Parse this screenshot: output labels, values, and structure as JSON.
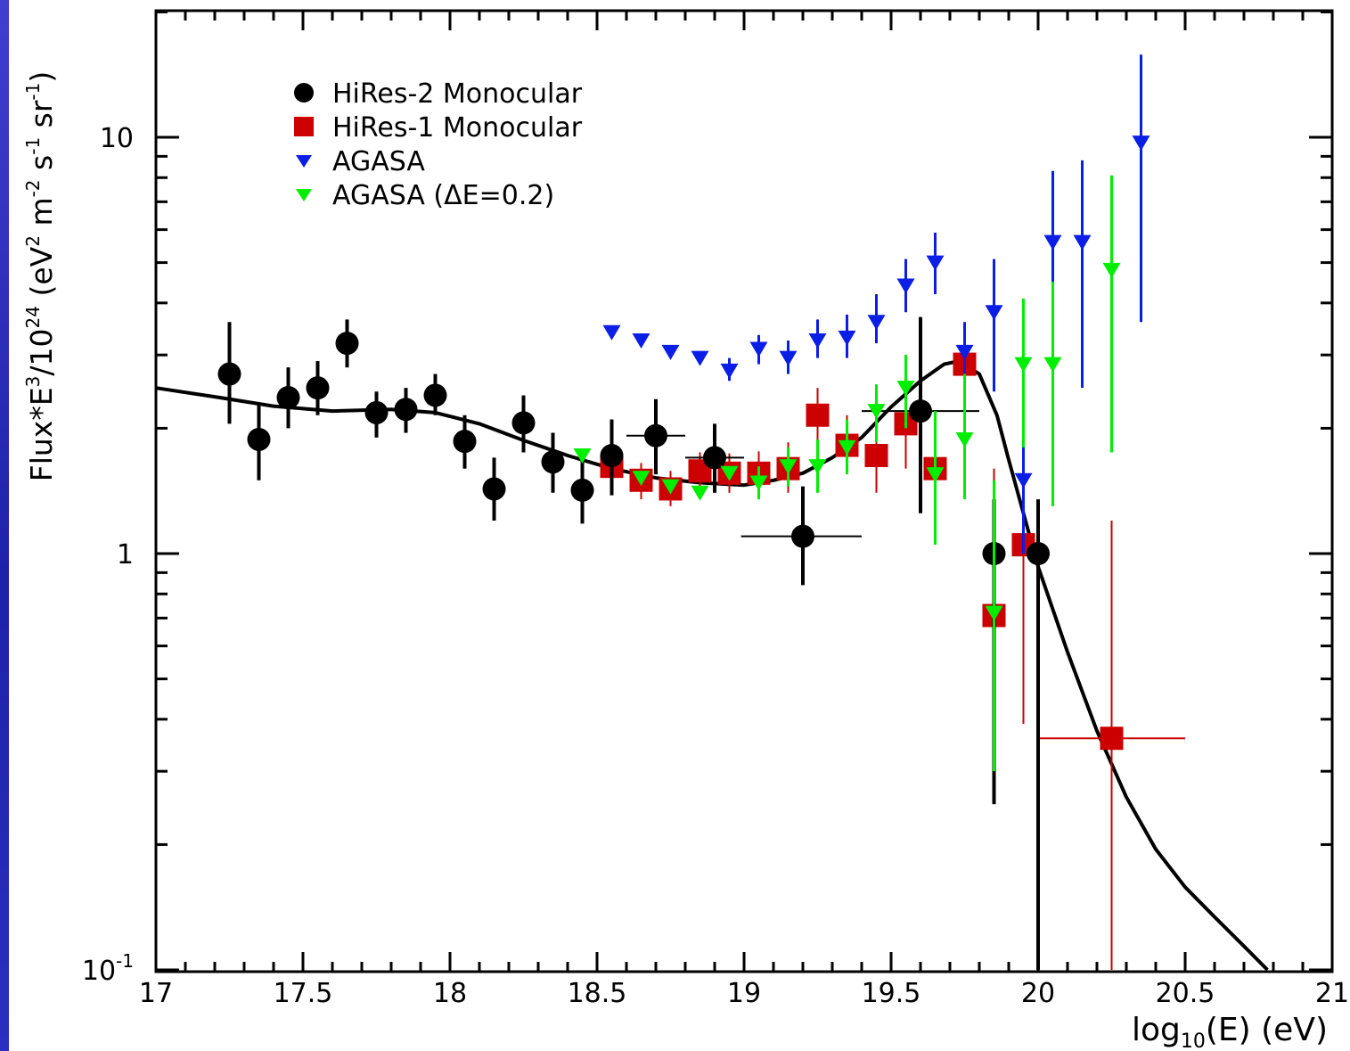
{
  "chart_data": {
    "type": "scatter",
    "xlabel": "log10(E) (eV)",
    "ylabel": "Flux*E^3/10^24 (eV^2 m^-2 s^-1 sr^-1)",
    "xlim": [
      17,
      21
    ],
    "ylim": [
      0.1,
      20
    ],
    "yscale": "log",
    "grid": false,
    "legend_position": "top-left",
    "x_ticks": [
      "17",
      "17.5",
      "18",
      "18.5",
      "19",
      "19.5",
      "20",
      "20.5",
      "21"
    ],
    "y_ticks": [
      {
        "value": 10,
        "label": "10"
      },
      {
        "value": 1,
        "label": "1"
      },
      {
        "value": 0.1,
        "label": "10^-1"
      }
    ],
    "series": [
      {
        "name": "HiRes-2 Monocular",
        "marker": "circle",
        "color": "#000000",
        "points": [
          {
            "x": 17.25,
            "y": 2.7,
            "ylo": 2.05,
            "yhi": 3.6
          },
          {
            "x": 17.35,
            "y": 1.88,
            "ylo": 1.5,
            "yhi": 2.3
          },
          {
            "x": 17.45,
            "y": 2.37,
            "ylo": 2.0,
            "yhi": 2.8
          },
          {
            "x": 17.55,
            "y": 2.5,
            "ylo": 2.15,
            "yhi": 2.9
          },
          {
            "x": 17.65,
            "y": 3.2,
            "ylo": 2.8,
            "yhi": 3.65
          },
          {
            "x": 17.75,
            "y": 2.18,
            "ylo": 1.9,
            "yhi": 2.45
          },
          {
            "x": 17.85,
            "y": 2.22,
            "ylo": 1.95,
            "yhi": 2.5
          },
          {
            "x": 17.95,
            "y": 2.4,
            "ylo": 2.15,
            "yhi": 2.7
          },
          {
            "x": 18.05,
            "y": 1.86,
            "ylo": 1.6,
            "yhi": 2.15
          },
          {
            "x": 18.15,
            "y": 1.43,
            "ylo": 1.2,
            "yhi": 1.7
          },
          {
            "x": 18.25,
            "y": 2.06,
            "ylo": 1.75,
            "yhi": 2.4
          },
          {
            "x": 18.35,
            "y": 1.66,
            "ylo": 1.4,
            "yhi": 1.95
          },
          {
            "x": 18.45,
            "y": 1.42,
            "ylo": 1.18,
            "yhi": 1.7
          },
          {
            "x": 18.55,
            "y": 1.72,
            "ylo": 1.38,
            "yhi": 2.1
          },
          {
            "x": 18.7,
            "y": 1.92,
            "ylo": 1.55,
            "yhi": 2.35,
            "xlo": 18.6,
            "xhi": 18.8
          },
          {
            "x": 18.9,
            "y": 1.7,
            "ylo": 1.4,
            "yhi": 2.05,
            "xlo": 18.8,
            "xhi": 19.0
          },
          {
            "x": 19.2,
            "y": 1.1,
            "ylo": 0.84,
            "yhi": 1.45,
            "xlo": 18.99,
            "xhi": 19.4
          },
          {
            "x": 19.6,
            "y": 2.2,
            "ylo": 1.25,
            "yhi": 3.7,
            "xlo": 19.4,
            "xhi": 19.8
          },
          {
            "x": 19.85,
            "y": 1.0,
            "ylo": 0.25,
            "yhi": 1.35
          },
          {
            "x": 20.0,
            "y": 1.0,
            "ylo": 0.1,
            "yhi": 1.35
          }
        ]
      },
      {
        "name": "HiRes-1 Monocular",
        "marker": "square",
        "color": "#cc0000",
        "points": [
          {
            "x": 18.55,
            "y": 1.62,
            "ylo": 1.45,
            "yhi": 1.8
          },
          {
            "x": 18.65,
            "y": 1.5,
            "ylo": 1.35,
            "yhi": 1.65
          },
          {
            "x": 18.75,
            "y": 1.43,
            "ylo": 1.3,
            "yhi": 1.58
          },
          {
            "x": 18.85,
            "y": 1.58,
            "ylo": 1.42,
            "yhi": 1.75
          },
          {
            "x": 18.95,
            "y": 1.56,
            "ylo": 1.4,
            "yhi": 1.74
          },
          {
            "x": 19.05,
            "y": 1.56,
            "ylo": 1.38,
            "yhi": 1.76
          },
          {
            "x": 19.15,
            "y": 1.6,
            "ylo": 1.4,
            "yhi": 1.85
          },
          {
            "x": 19.25,
            "y": 2.15,
            "ylo": 1.85,
            "yhi": 2.5
          },
          {
            "x": 19.35,
            "y": 1.82,
            "ylo": 1.55,
            "yhi": 2.15
          },
          {
            "x": 19.45,
            "y": 1.72,
            "ylo": 1.4,
            "yhi": 2.1
          },
          {
            "x": 19.55,
            "y": 2.05,
            "ylo": 1.6,
            "yhi": 2.6
          },
          {
            "x": 19.65,
            "y": 1.6,
            "ylo": 1.15,
            "yhi": 2.15
          },
          {
            "x": 19.75,
            "y": 2.85,
            "ylo": 2.45,
            "yhi": 3.3
          },
          {
            "x": 19.85,
            "y": 0.71,
            "ylo": 0.25,
            "yhi": 1.6
          },
          {
            "x": 19.95,
            "y": 1.05,
            "ylo": 0.39,
            "yhi": 1.85
          },
          {
            "x": 20.25,
            "y": 0.36,
            "ylo": 0.1,
            "yhi": 1.2,
            "xlo": 20.0,
            "xhi": 20.5
          }
        ]
      },
      {
        "name": "AGASA",
        "marker": "triangle-down",
        "color": "#0a1ee6",
        "points": [
          {
            "x": 18.55,
            "y": 3.4
          },
          {
            "x": 18.65,
            "y": 3.25
          },
          {
            "x": 18.75,
            "y": 3.05
          },
          {
            "x": 18.85,
            "y": 2.95
          },
          {
            "x": 18.95,
            "y": 2.75,
            "ylo": 2.6,
            "yhi": 2.95
          },
          {
            "x": 19.05,
            "y": 3.1,
            "ylo": 2.85,
            "yhi": 3.35
          },
          {
            "x": 19.15,
            "y": 2.95,
            "ylo": 2.7,
            "yhi": 3.25
          },
          {
            "x": 19.25,
            "y": 3.25,
            "ylo": 2.95,
            "yhi": 3.65
          },
          {
            "x": 19.35,
            "y": 3.3,
            "ylo": 2.95,
            "yhi": 3.75
          },
          {
            "x": 19.45,
            "y": 3.6,
            "ylo": 3.2,
            "yhi": 4.2
          },
          {
            "x": 19.55,
            "y": 4.4,
            "ylo": 3.8,
            "yhi": 5.1
          },
          {
            "x": 19.65,
            "y": 5.0,
            "ylo": 4.2,
            "yhi": 5.9
          },
          {
            "x": 19.75,
            "y": 3.05,
            "ylo": 2.3,
            "yhi": 3.6
          },
          {
            "x": 19.85,
            "y": 3.8,
            "ylo": 2.45,
            "yhi": 5.1
          },
          {
            "x": 19.95,
            "y": 1.5,
            "ylo": 1.0,
            "yhi": 2.3
          },
          {
            "x": 20.05,
            "y": 5.6,
            "ylo": 3.8,
            "yhi": 8.3
          },
          {
            "x": 20.15,
            "y": 5.6,
            "ylo": 2.5,
            "yhi": 8.8
          },
          {
            "x": 20.35,
            "y": 9.7,
            "ylo": 3.6,
            "yhi": 15.8
          }
        ]
      },
      {
        "name": "AGASA (ΔE=0.2)",
        "marker": "triangle-down",
        "color": "#00ee00",
        "points": [
          {
            "x": 18.45,
            "y": 1.72
          },
          {
            "x": 18.65,
            "y": 1.52
          },
          {
            "x": 18.75,
            "y": 1.45
          },
          {
            "x": 18.85,
            "y": 1.4
          },
          {
            "x": 18.95,
            "y": 1.56
          },
          {
            "x": 19.05,
            "y": 1.48,
            "ylo": 1.35,
            "yhi": 1.62
          },
          {
            "x": 19.15,
            "y": 1.62,
            "ylo": 1.45,
            "yhi": 1.8
          },
          {
            "x": 19.25,
            "y": 1.62,
            "ylo": 1.4,
            "yhi": 1.88
          },
          {
            "x": 19.35,
            "y": 1.8,
            "ylo": 1.55,
            "yhi": 2.1
          },
          {
            "x": 19.45,
            "y": 2.2,
            "ylo": 1.85,
            "yhi": 2.55
          },
          {
            "x": 19.55,
            "y": 2.5,
            "ylo": 2.0,
            "yhi": 3.0
          },
          {
            "x": 19.65,
            "y": 1.55,
            "ylo": 1.05,
            "yhi": 2.2
          },
          {
            "x": 19.75,
            "y": 1.88,
            "ylo": 1.35,
            "yhi": 2.7
          },
          {
            "x": 19.85,
            "y": 0.72,
            "ylo": 0.3,
            "yhi": 1.5
          },
          {
            "x": 19.95,
            "y": 2.85,
            "ylo": 1.8,
            "yhi": 4.1
          },
          {
            "x": 20.05,
            "y": 2.85,
            "ylo": 1.3,
            "yhi": 4.5
          },
          {
            "x": 20.25,
            "y": 4.8,
            "ylo": 1.75,
            "yhi": 8.1
          }
        ]
      }
    ],
    "fit_curve": {
      "color": "#000000",
      "points": [
        [
          17.0,
          2.5
        ],
        [
          17.2,
          2.38
        ],
        [
          17.4,
          2.26
        ],
        [
          17.6,
          2.2
        ],
        [
          17.8,
          2.22
        ],
        [
          17.95,
          2.18
        ],
        [
          18.1,
          2.05
        ],
        [
          18.25,
          1.87
        ],
        [
          18.4,
          1.72
        ],
        [
          18.55,
          1.6
        ],
        [
          18.7,
          1.52
        ],
        [
          18.85,
          1.48
        ],
        [
          19.0,
          1.46
        ],
        [
          19.1,
          1.5
        ],
        [
          19.2,
          1.56
        ],
        [
          19.3,
          1.7
        ],
        [
          19.4,
          1.9
        ],
        [
          19.5,
          2.25
        ],
        [
          19.6,
          2.6
        ],
        [
          19.68,
          2.85
        ],
        [
          19.73,
          2.9
        ],
        [
          19.8,
          2.7
        ],
        [
          19.86,
          2.15
        ],
        [
          19.9,
          1.68
        ],
        [
          19.95,
          1.25
        ],
        [
          20.0,
          0.93
        ],
        [
          20.1,
          0.58
        ],
        [
          20.2,
          0.375
        ],
        [
          20.3,
          0.26
        ],
        [
          20.4,
          0.195
        ],
        [
          20.5,
          0.158
        ],
        [
          20.6,
          0.134
        ],
        [
          20.7,
          0.114
        ],
        [
          20.78,
          0.1
        ]
      ]
    }
  }
}
